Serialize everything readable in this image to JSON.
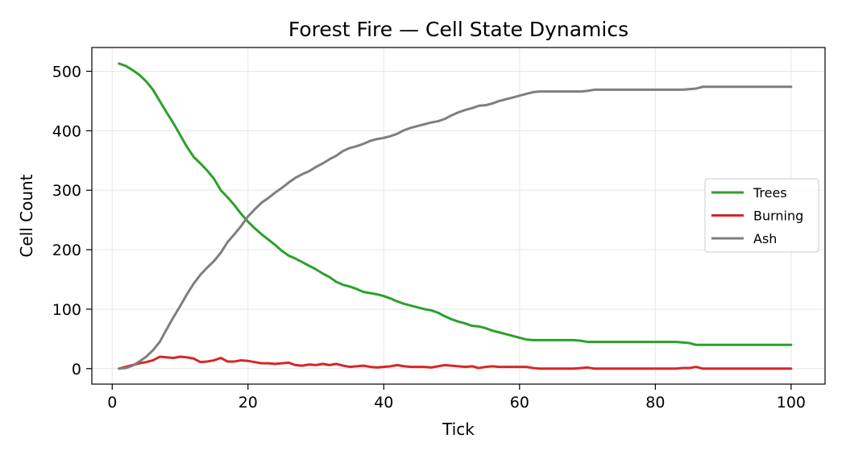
{
  "chart_data": {
    "type": "line",
    "title": "Forest Fire — Cell State Dynamics",
    "xlabel": "Tick",
    "ylabel": "Cell Count",
    "xlim": [
      -3,
      105
    ],
    "ylim": [
      -26,
      540
    ],
    "xticks": [
      0,
      20,
      40,
      60,
      80,
      100
    ],
    "yticks": [
      0,
      100,
      200,
      300,
      400,
      500
    ],
    "grid": true,
    "legend_position": "center-right",
    "x": [
      1,
      2,
      3,
      4,
      5,
      6,
      7,
      8,
      9,
      10,
      11,
      12,
      13,
      14,
      15,
      16,
      17,
      18,
      19,
      20,
      21,
      22,
      23,
      24,
      25,
      26,
      27,
      28,
      29,
      30,
      31,
      32,
      33,
      34,
      35,
      36,
      37,
      38,
      39,
      40,
      41,
      42,
      43,
      44,
      45,
      46,
      47,
      48,
      49,
      50,
      51,
      52,
      53,
      54,
      55,
      56,
      57,
      58,
      59,
      60,
      61,
      62,
      63,
      64,
      65,
      66,
      67,
      68,
      69,
      70,
      71,
      72,
      73,
      74,
      75,
      76,
      77,
      78,
      79,
      80,
      81,
      82,
      83,
      84,
      85,
      86,
      87,
      88,
      89,
      90,
      91,
      92,
      93,
      94,
      95,
      96,
      97,
      98,
      99,
      100
    ],
    "series": [
      {
        "name": "Trees",
        "color": "#2ca02c",
        "values": [
          513,
          509,
          502,
          494,
          483,
          469,
          450,
          431,
          413,
          393,
          373,
          356,
          345,
          333,
          319,
          300,
          288,
          275,
          260,
          247,
          236,
          226,
          217,
          208,
          198,
          190,
          185,
          179,
          173,
          167,
          160,
          154,
          146,
          141,
          138,
          134,
          129,
          127,
          125,
          122,
          118,
          113,
          109,
          106,
          103,
          100,
          98,
          94,
          88,
          83,
          79,
          76,
          72,
          71,
          68,
          64,
          61,
          58,
          55,
          52,
          49,
          48,
          48,
          48,
          48,
          48,
          48,
          48,
          47,
          45,
          45,
          45,
          45,
          45,
          45,
          45,
          45,
          45,
          45,
          45,
          45,
          45,
          45,
          44,
          43,
          40,
          40,
          40,
          40,
          40,
          40,
          40,
          40,
          40,
          40,
          40,
          40,
          40,
          40,
          40
        ]
      },
      {
        "name": "Burning",
        "color": "#d62728",
        "values": [
          0,
          3,
          6,
          9,
          11,
          14,
          20,
          19,
          18,
          20,
          19,
          17,
          11,
          12,
          14,
          18,
          12,
          12,
          14,
          13,
          11,
          9,
          9,
          8,
          9,
          10,
          6,
          5,
          7,
          6,
          8,
          6,
          8,
          5,
          3,
          4,
          5,
          3,
          2,
          3,
          4,
          6,
          4,
          3,
          3,
          3,
          2,
          4,
          6,
          5,
          4,
          3,
          4,
          1,
          3,
          4,
          3,
          3,
          3,
          3,
          3,
          1,
          0,
          0,
          0,
          0,
          0,
          0,
          1,
          2,
          0,
          0,
          0,
          0,
          0,
          0,
          0,
          0,
          0,
          0,
          0,
          0,
          0,
          1,
          1,
          3,
          0,
          0,
          0,
          0,
          0,
          0,
          0,
          0,
          0,
          0,
          0,
          0,
          0,
          0
        ]
      },
      {
        "name": "Ash",
        "color": "#7f7f7f",
        "values": [
          0,
          1,
          5,
          12,
          20,
          31,
          45,
          66,
          86,
          105,
          125,
          143,
          158,
          170,
          181,
          195,
          213,
          226,
          240,
          256,
          268,
          279,
          287,
          296,
          304,
          313,
          321,
          327,
          332,
          339,
          345,
          352,
          358,
          366,
          371,
          374,
          378,
          383,
          386,
          388,
          391,
          395,
          401,
          405,
          408,
          411,
          414,
          416,
          420,
          426,
          431,
          435,
          438,
          442,
          443,
          446,
          450,
          453,
          456,
          459,
          462,
          465,
          466,
          466,
          466,
          466,
          466,
          466,
          466,
          467,
          469,
          469,
          469,
          469,
          469,
          469,
          469,
          469,
          469,
          469,
          469,
          469,
          469,
          469,
          470,
          471,
          474,
          474,
          474,
          474,
          474,
          474,
          474,
          474,
          474,
          474,
          474,
          474,
          474,
          474
        ]
      }
    ]
  }
}
